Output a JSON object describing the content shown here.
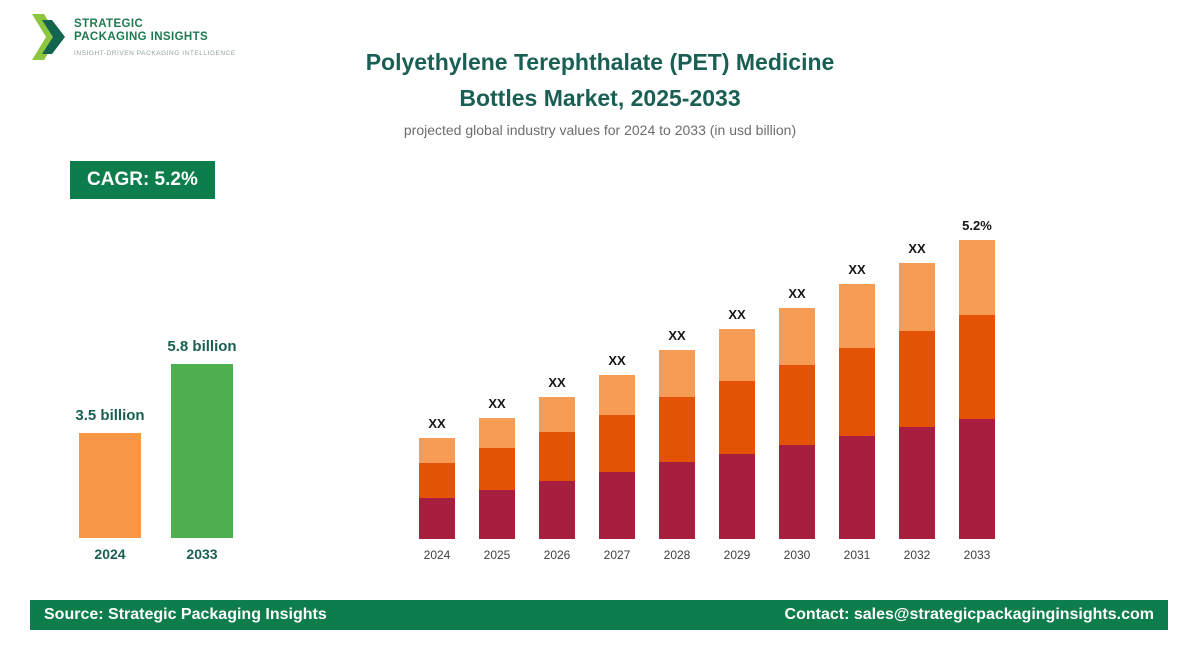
{
  "logo": {
    "line1": "STRATEGIC",
    "line2": "PACKAGING INSIGHTS",
    "tagline": "INSIGHT-DRIVEN PACKAGING INTELLIGENCE"
  },
  "header": {
    "title_line1": "Polyethylene Terephthalate (PET) Medicine",
    "title_line2": "Bottles Market, 2025-2033",
    "subtitle": "projected global industry values for 2024 to 2033 (in usd billion)"
  },
  "badge": {
    "cagr_label": "CAGR: 5.2%"
  },
  "colors": {
    "brand_green": "#0d7d4c",
    "title_teal": "#195f53",
    "logo_light_green": "#8dc63f",
    "logo_dark_green": "#14654f"
  },
  "chart_data": [
    {
      "type": "bar",
      "title": "2024 vs 2033 market size comparison",
      "categories": [
        "2024",
        "2033"
      ],
      "values": [
        3.5,
        5.8
      ],
      "value_labels": [
        "3.5 billion",
        "5.8 billion"
      ],
      "bar_colors": [
        "#f79646",
        "#4daf4e"
      ],
      "units": "usd billion",
      "ylim": [
        0,
        6.5
      ],
      "grid": false,
      "legend": false
    },
    {
      "type": "bar",
      "subtype": "stacked",
      "title": "Projected global industry values 2024 to 2033",
      "categories": [
        "2024",
        "2025",
        "2026",
        "2027",
        "2028",
        "2029",
        "2030",
        "2031",
        "2032",
        "2033"
      ],
      "bar_value_labels": [
        "XX",
        "XX",
        "XX",
        "XX",
        "XX",
        "XX",
        "XX",
        "XX",
        "XX",
        "5.2%"
      ],
      "note": "numeric values masked as XX in source; heights are relative units read from pixels",
      "series": [
        {
          "name": "segment-bottom",
          "color": "#a81e3e",
          "values": [
            41,
            49,
            58,
            67,
            77,
            85,
            94,
            103,
            112,
            120
          ]
        },
        {
          "name": "segment-middle",
          "color": "#e35205",
          "values": [
            35,
            42,
            49,
            57,
            65,
            73,
            80,
            88,
            96,
            104
          ]
        },
        {
          "name": "segment-top",
          "color": "#f79c54",
          "values": [
            25,
            30,
            35,
            40,
            47,
            52,
            57,
            64,
            68,
            75
          ]
        }
      ],
      "grid": false,
      "legend": false
    }
  ],
  "footer": {
    "source": "Source: Strategic Packaging Insights",
    "contact": "Contact: sales@strategicpackaginginsights.com"
  }
}
